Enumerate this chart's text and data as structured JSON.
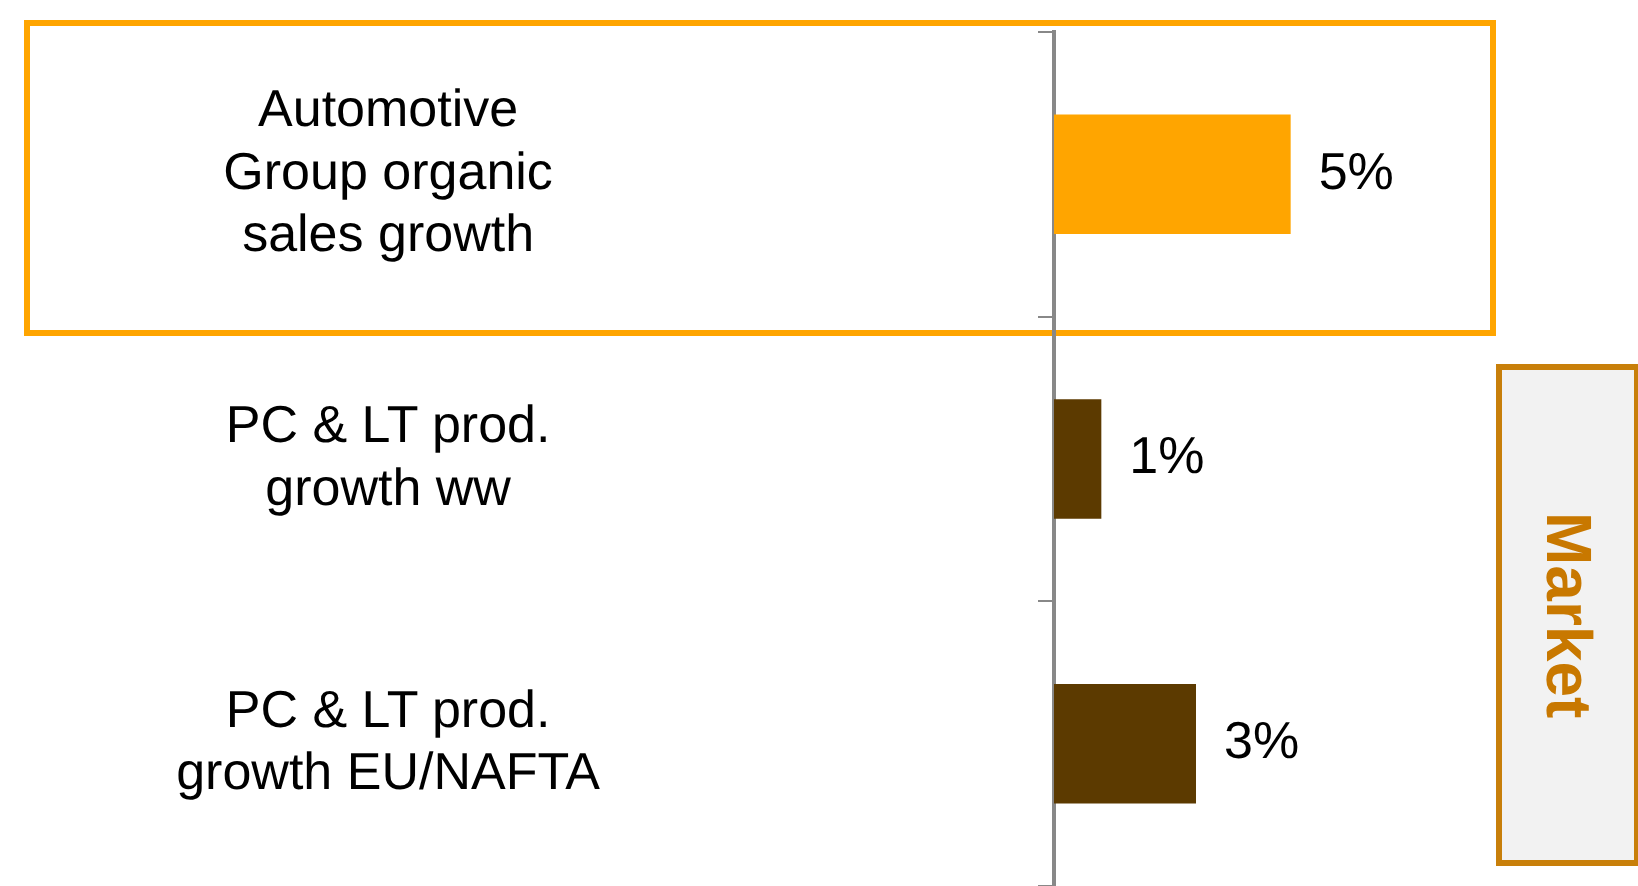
{
  "chart_data": {
    "type": "bar",
    "orientation": "horizontal",
    "categories": [
      "Automotive Group organic sales growth",
      "PC & LT prod. growth ww",
      "PC & LT prod. growth EU/NAFTA"
    ],
    "values": [
      5,
      1,
      3
    ],
    "colors": [
      "#ffa500",
      "#5c3a00",
      "#5c3a00"
    ],
    "value_labels": [
      "5%",
      "1%",
      "3%"
    ],
    "annotations": [
      "Market"
    ],
    "grid": false,
    "legend": false
  }
}
